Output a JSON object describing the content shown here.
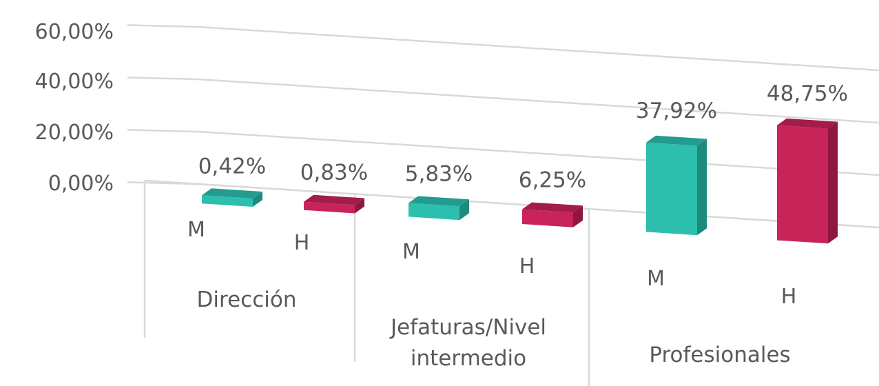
{
  "chart_data": {
    "type": "bar",
    "groups": [
      {
        "name": "Dirección",
        "categories": [
          "M",
          "H"
        ],
        "values": [
          0.42,
          0.83
        ],
        "labels": [
          "0,42%",
          "0,83%"
        ]
      },
      {
        "name": "Jefaturas/Nivel intermedio",
        "categories": [
          "M",
          "H"
        ],
        "values": [
          5.83,
          6.25
        ],
        "labels": [
          "5,83%",
          "6,25%"
        ]
      },
      {
        "name": "Profesionales",
        "categories": [
          "M",
          "H"
        ],
        "values": [
          37.92,
          48.75
        ],
        "labels": [
          "37,92%",
          "48,75%"
        ]
      }
    ],
    "yticks": [
      "60,00%",
      "40,00%",
      "20,00%",
      "0,00%"
    ],
    "ylim": [
      0,
      60
    ],
    "grid": true,
    "legend": "none",
    "colors": {
      "M": "#2dbfae",
      "H": "#c8245a",
      "M_side": "#1d8a7e",
      "M_top": "#239c8f",
      "H_side": "#8e1640",
      "H_top": "#a31c4b",
      "gridline": "#d9d9d9",
      "text": "#595959"
    }
  }
}
